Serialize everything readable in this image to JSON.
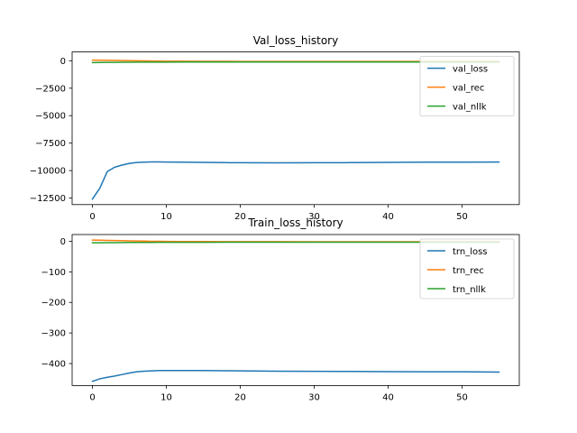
{
  "chart_data": [
    {
      "type": "line",
      "title": "Val_loss_history",
      "xlabel": "",
      "ylabel": "",
      "xlim": [
        -2.75,
        57.75
      ],
      "ylim": [
        -13100,
        800
      ],
      "xticks": [
        0,
        10,
        20,
        30,
        40,
        50
      ],
      "yticks": [
        0,
        -2500,
        -5000,
        -7500,
        -10000,
        -12500
      ],
      "ytick_labels": [
        "0",
        "−2500",
        "−5000",
        "−7500",
        "−10000",
        "−12500"
      ],
      "legend_placement": "top-right",
      "grid": false,
      "x": [
        0,
        1,
        2,
        3,
        4,
        5,
        6,
        7,
        8,
        9,
        10,
        12,
        15,
        18,
        20,
        25,
        30,
        35,
        40,
        45,
        50,
        55
      ],
      "series": [
        {
          "name": "val_loss",
          "color": "#1f77b4",
          "values": [
            -12600,
            -11600,
            -10100,
            -9700,
            -9500,
            -9350,
            -9270,
            -9230,
            -9210,
            -9210,
            -9220,
            -9240,
            -9260,
            -9280,
            -9290,
            -9300,
            -9290,
            -9280,
            -9260,
            -9240,
            -9230,
            -9220
          ]
        },
        {
          "name": "val_rec",
          "color": "#ff7f0e",
          "values": [
            60,
            50,
            40,
            30,
            20,
            10,
            0,
            -10,
            -20,
            -30,
            -40,
            -45,
            -50,
            -55,
            -60,
            -60,
            -60,
            -60,
            -60,
            -60,
            -60,
            -60
          ]
        },
        {
          "name": "val_nllk",
          "color": "#2ca02c",
          "values": [
            -170,
            -160,
            -150,
            -145,
            -140,
            -135,
            -130,
            -128,
            -126,
            -124,
            -122,
            -120,
            -118,
            -116,
            -115,
            -115,
            -115,
            -115,
            -115,
            -115,
            -115,
            -115
          ]
        }
      ]
    },
    {
      "type": "line",
      "title": "Train_loss_history",
      "xlabel": "",
      "ylabel": "",
      "xlim": [
        -2.75,
        57.75
      ],
      "ylim": [
        -472,
        22
      ],
      "xticks": [
        0,
        10,
        20,
        30,
        40,
        50
      ],
      "yticks": [
        0,
        -100,
        -200,
        -300,
        -400
      ],
      "ytick_labels": [
        "0",
        "−100",
        "−200",
        "−300",
        "−400"
      ],
      "legend_placement": "top-right",
      "grid": false,
      "x": [
        0,
        1,
        2,
        3,
        4,
        5,
        6,
        7,
        8,
        9,
        10,
        12,
        15,
        18,
        20,
        25,
        30,
        35,
        40,
        45,
        50,
        55
      ],
      "series": [
        {
          "name": "trn_loss",
          "color": "#1f77b4",
          "values": [
            -458,
            -450,
            -445,
            -441,
            -436,
            -431,
            -427,
            -425,
            -424,
            -423,
            -423,
            -423,
            -423,
            -423.5,
            -424,
            -425,
            -425.5,
            -426,
            -426.5,
            -427,
            -427,
            -428
          ]
        },
        {
          "name": "trn_rec",
          "color": "#ff7f0e",
          "values": [
            4,
            3.5,
            3,
            2.5,
            2,
            1.5,
            1,
            0.5,
            0,
            -0.3,
            -0.5,
            -0.8,
            -1,
            -1.2,
            -1.3,
            -1.4,
            -1.5,
            -1.5,
            -1.5,
            -1.5,
            -1.5,
            -1.5
          ]
        },
        {
          "name": "trn_nllk",
          "color": "#2ca02c",
          "values": [
            -5,
            -4.8,
            -4.6,
            -4.4,
            -4.2,
            -4,
            -3.9,
            -3.8,
            -3.7,
            -3.6,
            -3.5,
            -3.4,
            -3.3,
            -3.2,
            -3.2,
            -3.2,
            -3.2,
            -3.2,
            -3.2,
            -3.2,
            -3.2,
            -3.2
          ]
        }
      ]
    }
  ]
}
